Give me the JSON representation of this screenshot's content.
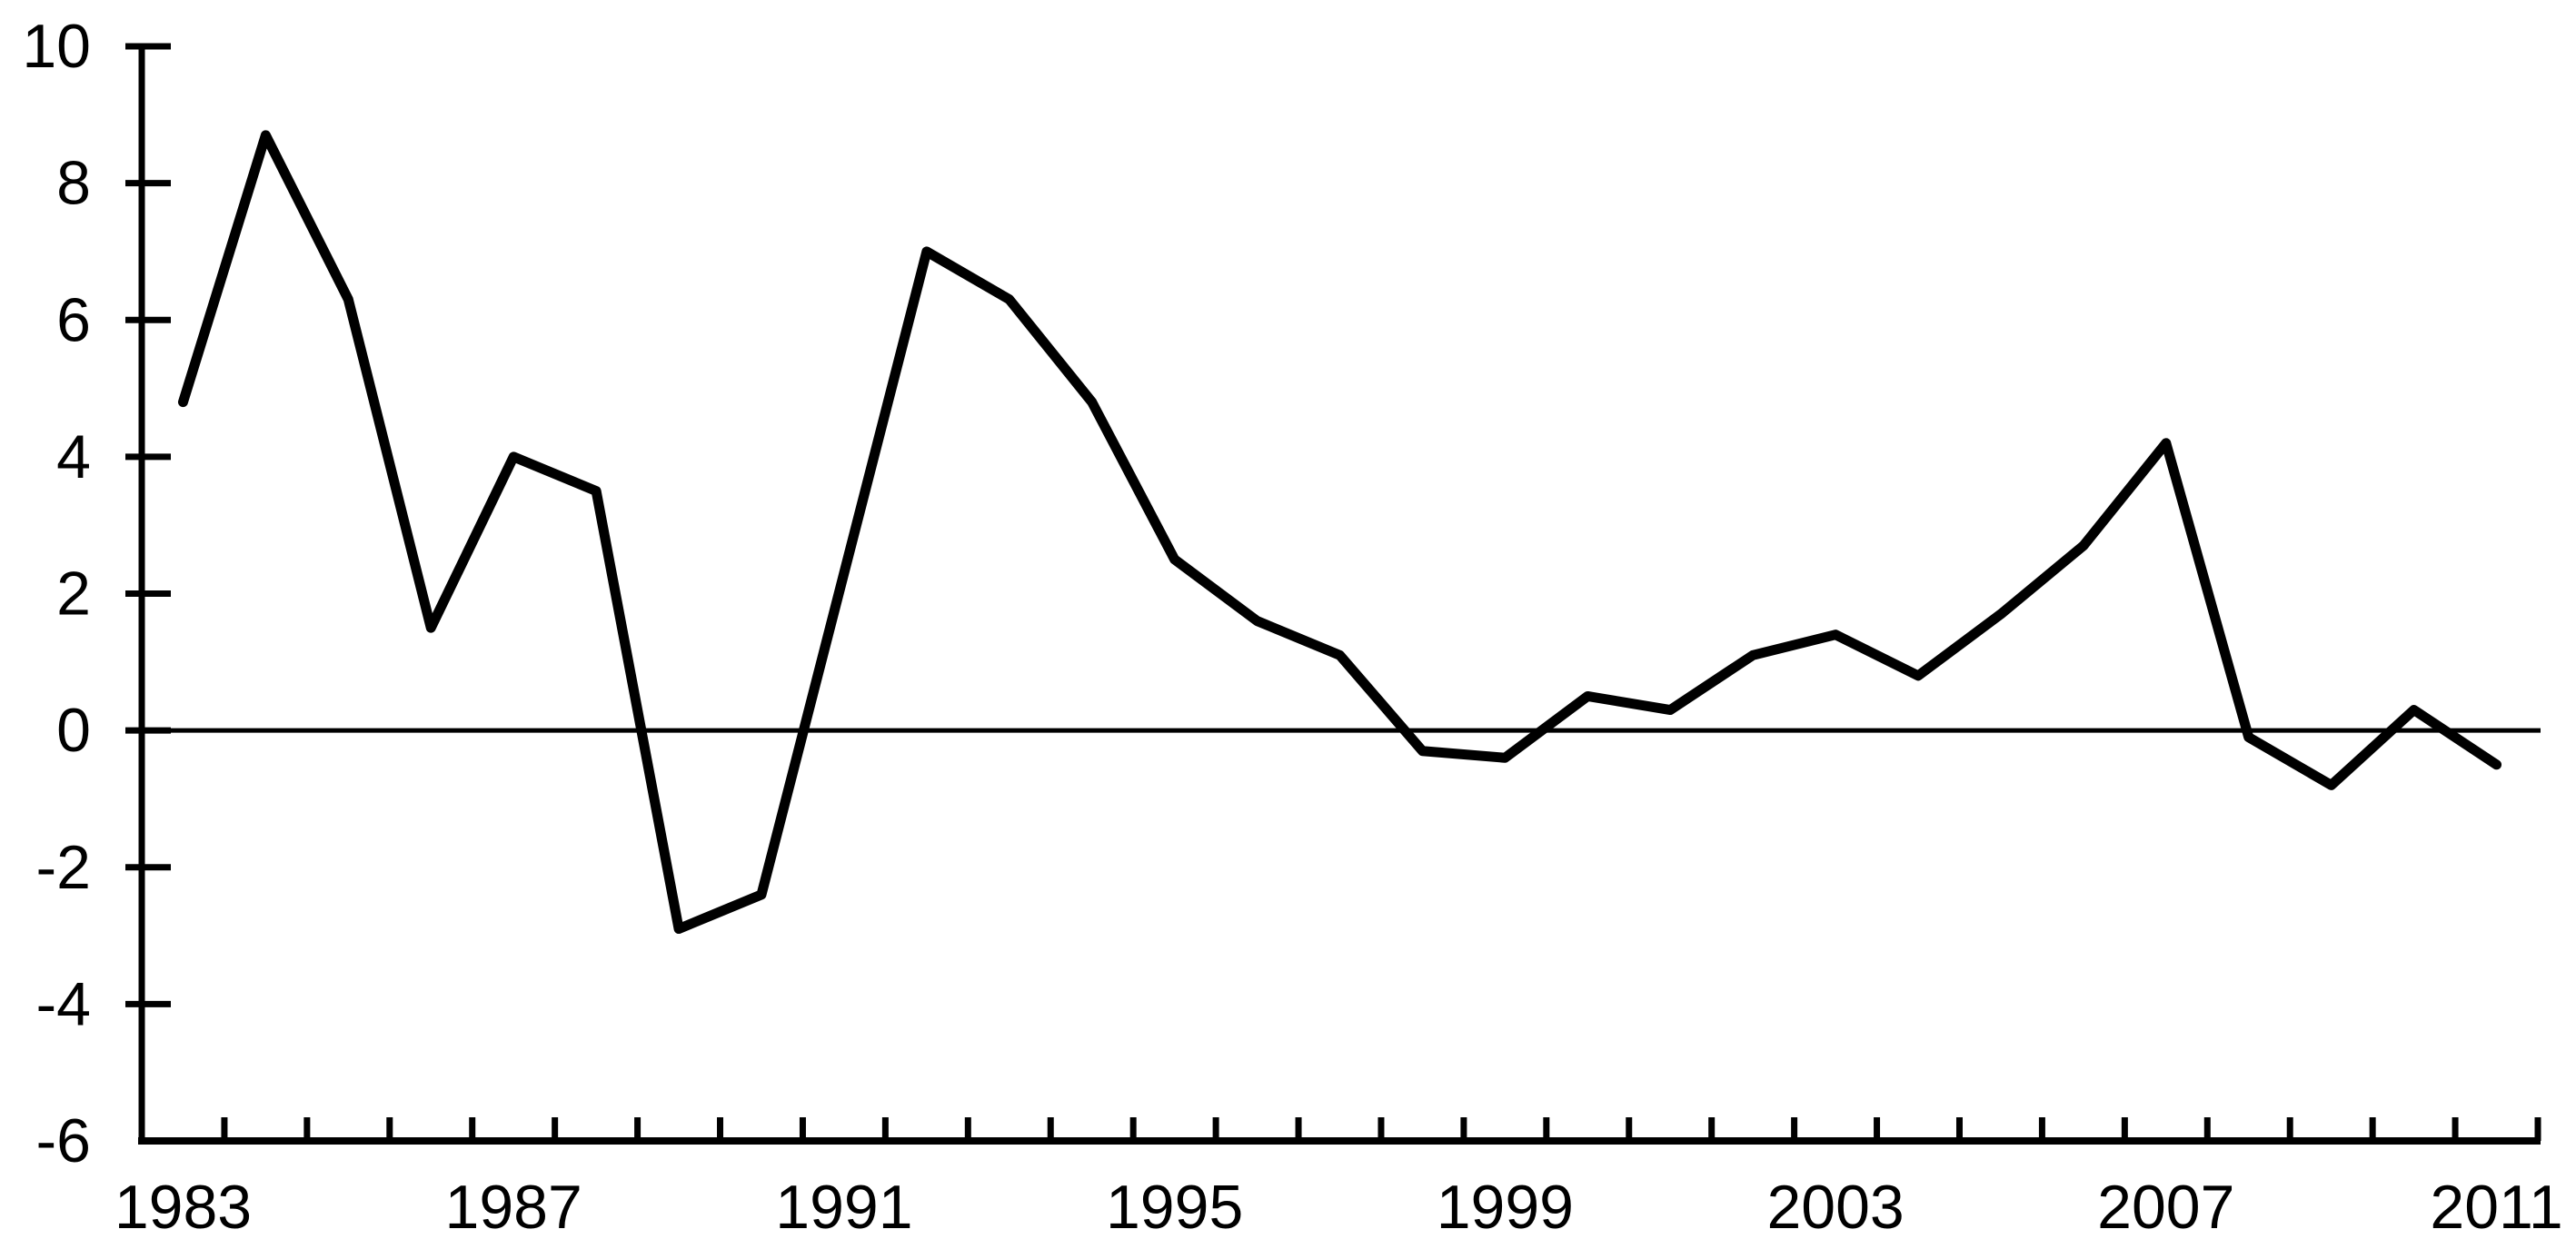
{
  "chart_data": {
    "type": "line",
    "title": "",
    "xlabel": "",
    "ylabel": "",
    "x": [
      1983,
      1984,
      1985,
      1986,
      1987,
      1988,
      1989,
      1990,
      1991,
      1992,
      1993,
      1994,
      1995,
      1996,
      1997,
      1998,
      1999,
      2000,
      2001,
      2002,
      2003,
      2004,
      2005,
      2006,
      2007,
      2008,
      2009,
      2010,
      2011
    ],
    "values": [
      4.8,
      8.7,
      6.3,
      1.5,
      4.0,
      3.5,
      -2.9,
      -2.4,
      2.3,
      7.0,
      6.3,
      4.8,
      2.5,
      1.6,
      1.1,
      -0.3,
      -0.4,
      0.5,
      0.3,
      1.1,
      1.4,
      0.8,
      1.7,
      2.7,
      4.2,
      -0.1,
      -0.8,
      0.3,
      -0.5
    ],
    "ylim": [
      -6,
      10
    ],
    "yticks": [
      10,
      8,
      6,
      4,
      2,
      0,
      -2,
      -4,
      -6
    ],
    "xtick_years": [
      1983,
      1987,
      1991,
      1995,
      1999,
      2003,
      2007,
      2011
    ],
    "x_minor_ticks_every_category": true,
    "grid": false,
    "legend": "none",
    "zero_line": true,
    "line_color": "#000000",
    "axis_color": "#000000",
    "background_color": "#ffffff",
    "line_width": 11,
    "axis_line_width": 7,
    "zero_line_width": 5,
    "tick_font_size": 68
  }
}
